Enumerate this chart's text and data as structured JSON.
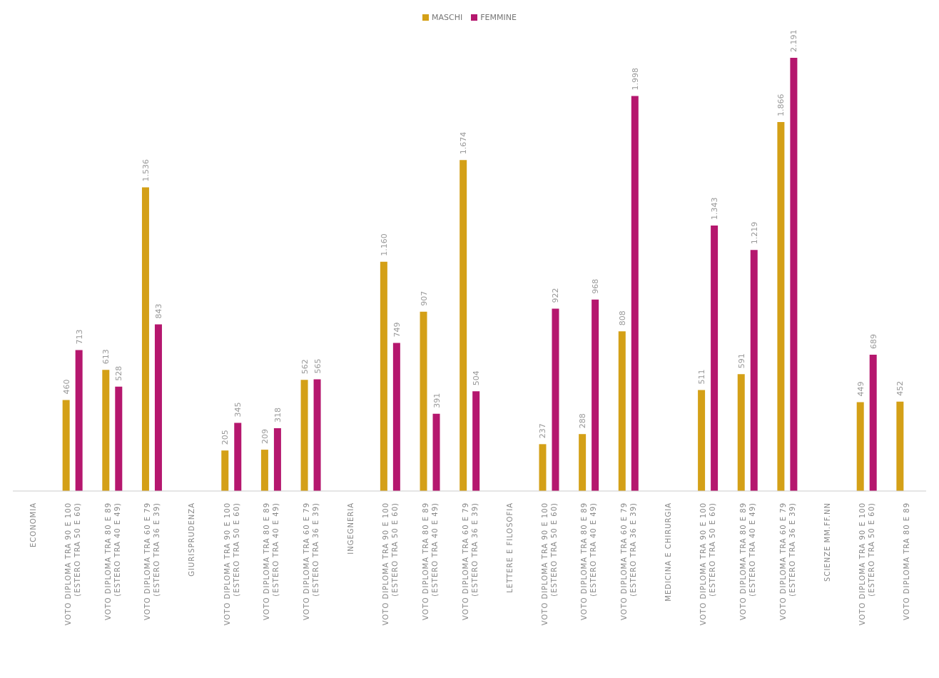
{
  "chart_data": {
    "type": "bar",
    "categories": [
      "ECONOMIA",
      "VOTO DIPLOMA TRA 90 E 100\n(ESTERO TRA 50 E 60)",
      "VOTO DIPLOMA TRA 80 E 89\n(ESTERO TRA 40 E 49)",
      "VOTO DIPLOMA TRA 60 E 79\n(ESTERO TRA 36 E 39)",
      "GIURISPRUDENZA",
      "VOTO DIPLOMA TRA 90 E 100\n(ESTERO TRA 50 E 60)",
      "VOTO DIPLOMA TRA 80 E 89\n(ESTERO TRA 40 E 49)",
      "VOTO DIPLOMA TRA 60 E 79\n(ESTERO TRA 36 E 39)",
      "INGEGNERIA",
      "VOTO DIPLOMA TRA 90 E 100\n(ESTERO TRA 50 E 60)",
      "VOTO DIPLOMA TRA 80 E 89\n(ESTERO TRA 40 E 49)",
      "VOTO DIPLOMA TRA 60 E 79\n(ESTERO TRA 36 E 39)",
      "LETTERE E FILOSOFIA",
      "VOTO DIPLOMA TRA 90 E 100\n(ESTERO TRA 50 E 60)",
      "VOTO DIPLOMA TRA 80 E 89\n(ESTERO TRA 40 E 49)",
      "VOTO DIPLOMA TRA 60 E 79\n(ESTERO TRA 36 E 39)",
      "MEDICINA E CHIRURGIA",
      "VOTO DIPLOMA TRA 90 E 100\n(ESTERO TRA 50 E 60)",
      "VOTO DIPLOMA TRA 80 E 89\n(ESTERO TRA 40 E 49)",
      "VOTO DIPLOMA TRA 60 E 79\n(ESTERO TRA 36 E 39)",
      "SCIENZE MM.FF.NN",
      "VOTO DIPLOMA TRA 90 E 100\n(ESTERO TRA 50 E 60)",
      "VOTO DIPLOMA TRA 80 E 89"
    ],
    "series": [
      {
        "name": "MASCHI",
        "color": "#d4a017",
        "values": [
          null,
          460,
          613,
          1536,
          null,
          205,
          209,
          562,
          null,
          1160,
          907,
          1674,
          null,
          237,
          288,
          808,
          null,
          511,
          591,
          1866,
          null,
          449,
          452
        ],
        "value_labels": [
          null,
          "460",
          "613",
          "1.536",
          null,
          "205",
          "209",
          "562",
          null,
          "1.160",
          "907",
          "1.674",
          null,
          "237",
          "288",
          "808",
          null,
          "511",
          "591",
          "1.866",
          null,
          "449",
          "452"
        ]
      },
      {
        "name": "FEMMINE",
        "color": "#b5176e",
        "values": [
          null,
          713,
          528,
          843,
          null,
          345,
          318,
          565,
          null,
          749,
          391,
          504,
          null,
          922,
          968,
          1998,
          null,
          1343,
          1219,
          2191,
          null,
          689,
          null
        ],
        "value_labels": [
          null,
          "713",
          "528",
          "843",
          null,
          "345",
          "318",
          "565",
          null,
          "749",
          "391",
          "504",
          null,
          "922",
          "968",
          "1.998",
          null,
          "1.343",
          "1.219",
          "2.191",
          null,
          "689",
          null
        ]
      }
    ],
    "legend": "top"
  }
}
